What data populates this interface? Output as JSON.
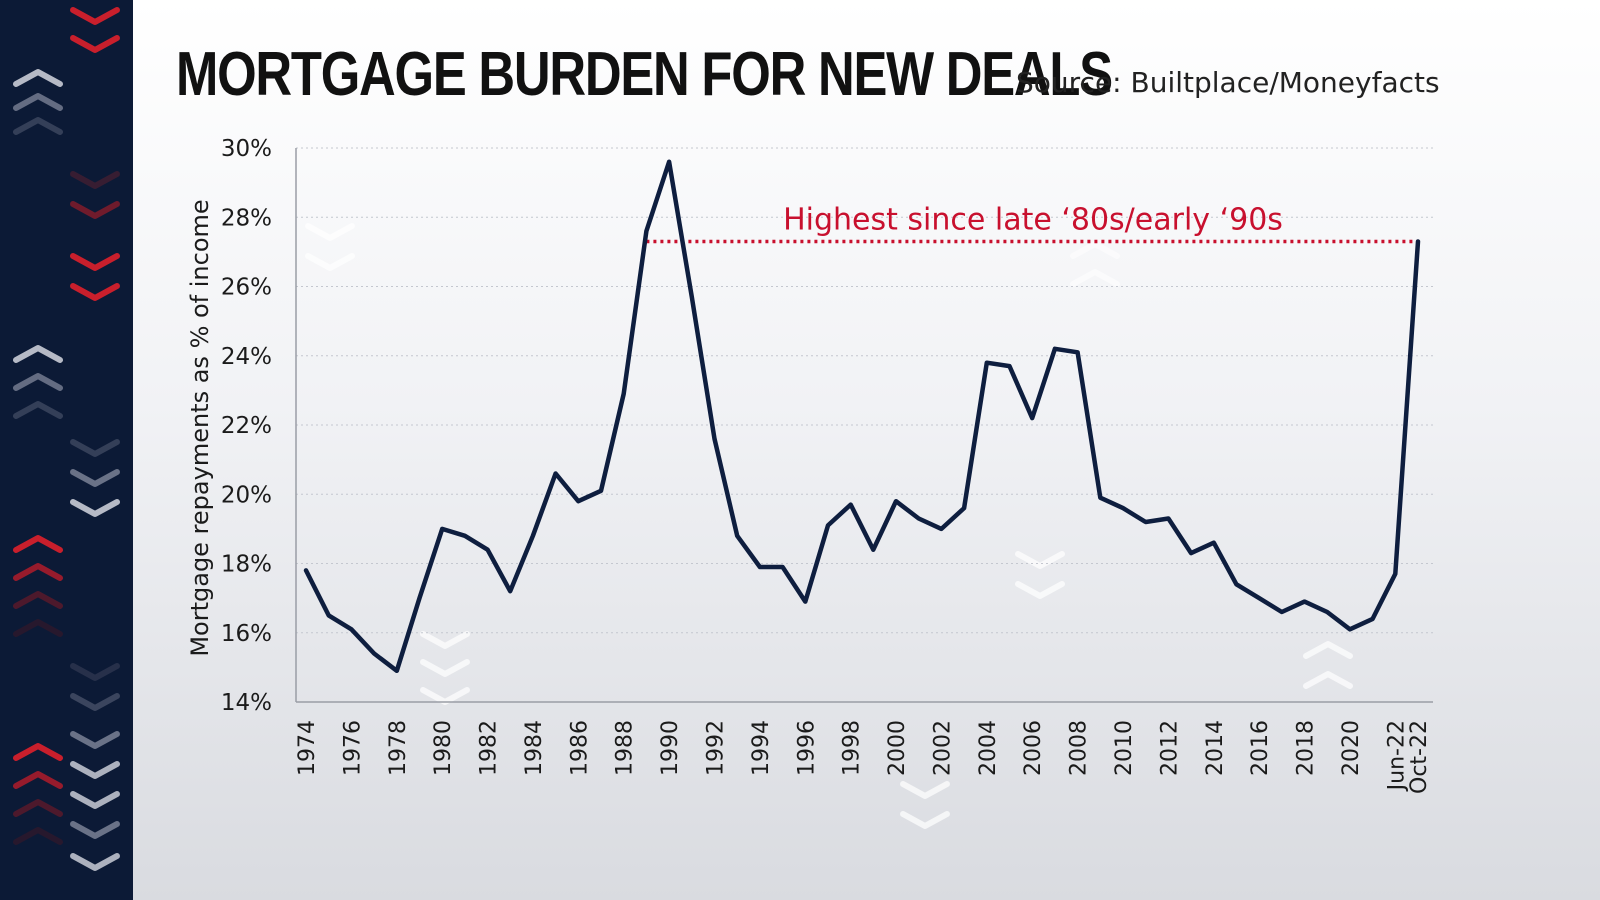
{
  "header": {
    "title": "MORTGAGE BURDEN FOR NEW DEALS",
    "source": "Source: Builtplace/Moneyfacts"
  },
  "colors": {
    "line": "#0e1e3f",
    "annotation": "#c8102e",
    "side_strip": "#0c1a36"
  },
  "chart_data": {
    "type": "line",
    "ylabel": "Mortgage repayments as % of income",
    "xlabel": "",
    "ylim": [
      14,
      30
    ],
    "y_ticks": [
      "14%",
      "16%",
      "18%",
      "20%",
      "22%",
      "24%",
      "26%",
      "28%",
      "30%"
    ],
    "y_tick_values": [
      14,
      16,
      18,
      20,
      22,
      24,
      26,
      28,
      30
    ],
    "grid": "horizontal dotted",
    "categories": [
      "1974",
      "1975",
      "1976",
      "1977",
      "1978",
      "1979",
      "1980",
      "1981",
      "1982",
      "1983",
      "1984",
      "1985",
      "1986",
      "1987",
      "1988",
      "1989",
      "1990",
      "1991",
      "1992",
      "1993",
      "1994",
      "1995",
      "1996",
      "1997",
      "1998",
      "1999",
      "2000",
      "2001",
      "2002",
      "2003",
      "2004",
      "2005",
      "2006",
      "2007",
      "2008",
      "2009",
      "2010",
      "2011",
      "2012",
      "2013",
      "2014",
      "2015",
      "2016",
      "2017",
      "2018",
      "2019",
      "2020",
      "2021",
      "Jun-22",
      "Oct-22"
    ],
    "x_tick_labels": [
      "1974",
      "1976",
      "1978",
      "1980",
      "1982",
      "1984",
      "1986",
      "1988",
      "1990",
      "1992",
      "1994",
      "1996",
      "1998",
      "2000",
      "2002",
      "2004",
      "2006",
      "2008",
      "2010",
      "2012",
      "2014",
      "2016",
      "2018",
      "2020",
      "Jun-22",
      "Oct-22"
    ],
    "series": [
      {
        "values": [
          17.8,
          16.5,
          16.1,
          15.4,
          14.9,
          17.0,
          19.0,
          18.8,
          18.4,
          17.2,
          18.8,
          20.6,
          19.8,
          20.1,
          22.9,
          27.6,
          29.6,
          25.7,
          21.6,
          18.8,
          17.9,
          17.9,
          16.9,
          19.1,
          19.7,
          18.4,
          19.8,
          19.3,
          19.0,
          19.6,
          23.8,
          23.7,
          22.2,
          24.2,
          24.1,
          19.9,
          19.6,
          19.2,
          19.3,
          18.3,
          18.6,
          17.4,
          17.0,
          16.6,
          16.9,
          16.6,
          16.1,
          16.4,
          17.7,
          27.3
        ]
      }
    ],
    "annotations": [
      {
        "text": "Highest since late ‘80s/early ‘90s",
        "from": "1989",
        "to": "Oct-22",
        "y": 27.3
      }
    ]
  }
}
